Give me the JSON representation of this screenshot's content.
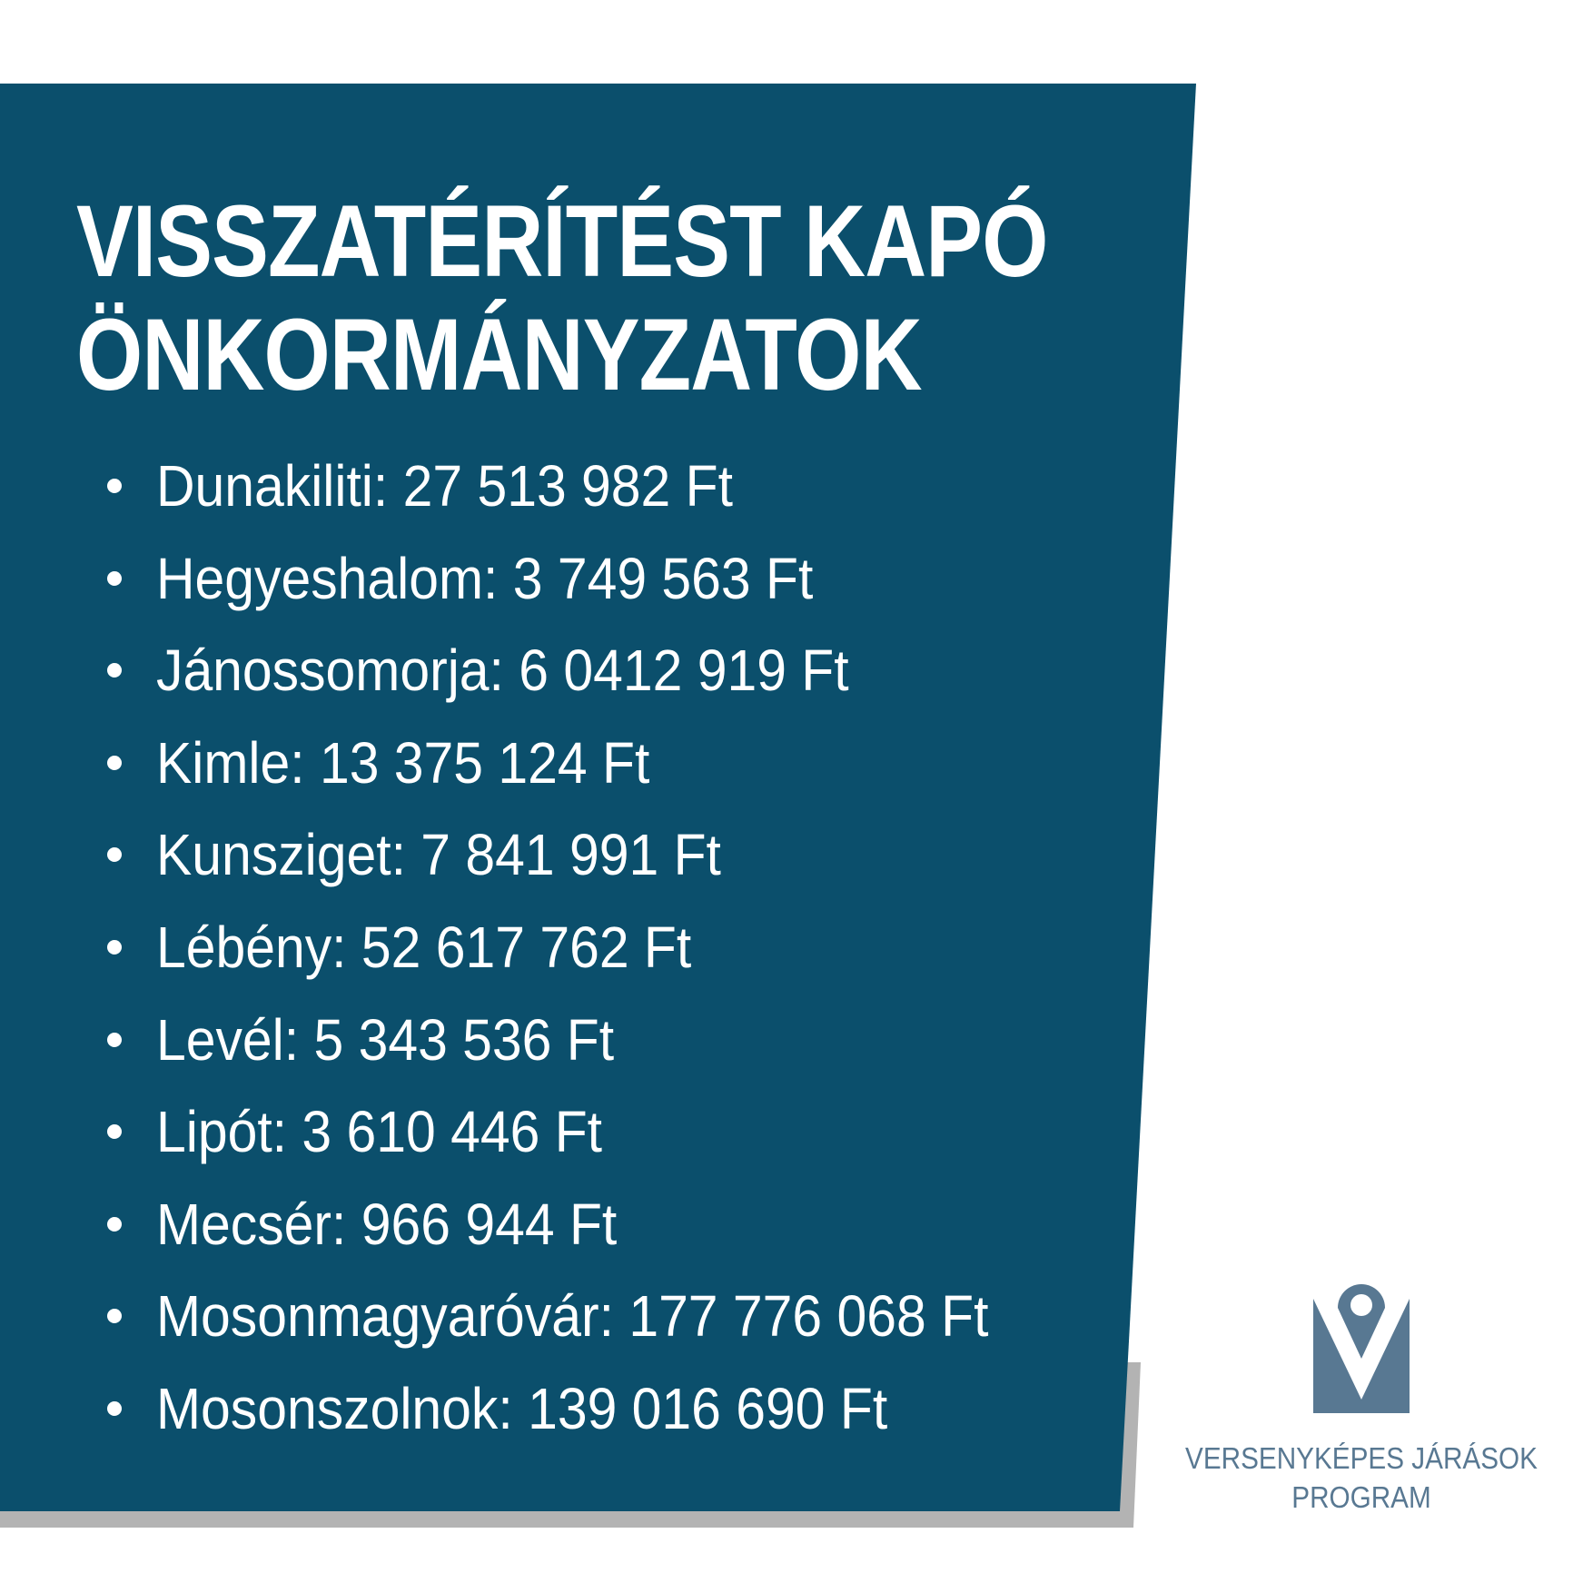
{
  "title": {
    "line1": "VISSZATÉRÍTÉST KAPÓ",
    "line2": "ÖNKORMÁNYZATOK"
  },
  "items": [
    {
      "text": "Dunakiliti: 27 513 982 Ft"
    },
    {
      "text": "Hegyeshalom: 3 749 563 Ft"
    },
    {
      "text": "Jánossomorja: 6 0412 919 Ft"
    },
    {
      "text": "Kimle: 13 375 124 Ft"
    },
    {
      "text": "Kunsziget: 7 841 991 Ft"
    },
    {
      "text": "Lébény: 52 617 762 Ft"
    },
    {
      "text": "Levél: 5 343 536 Ft"
    },
    {
      "text": "Lipót: 3 610 446 Ft"
    },
    {
      "text": "Mecsér: 966 944 Ft"
    },
    {
      "text": "Mosonmagyaróvár: 177 776 068 Ft"
    },
    {
      "text": "Mosonszolnok: 139 016 690 Ft"
    }
  ],
  "logo": {
    "line1": "VERSENYKÉPES JÁRÁSOK",
    "line2": "PROGRAM",
    "icon": "location-pin-v-icon"
  },
  "colors": {
    "panel": "#0b4f6c",
    "shadow": "#b3b3b3",
    "logo": "#587892"
  }
}
